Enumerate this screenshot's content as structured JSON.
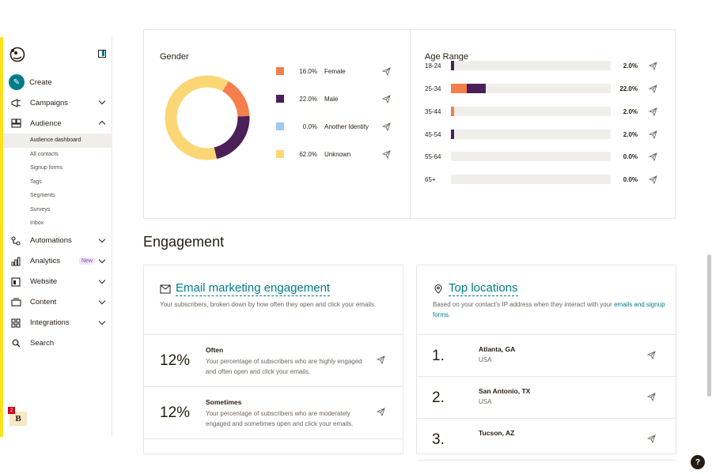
{
  "sidebar": {
    "items": [
      {
        "label": "Create",
        "icon": "pencil-icon"
      },
      {
        "label": "Campaigns",
        "icon": "megaphone-icon"
      },
      {
        "label": "Audience",
        "icon": "audience-icon"
      },
      {
        "label": "Automations",
        "icon": "automations-icon"
      },
      {
        "label": "Analytics",
        "icon": "analytics-icon",
        "badge": "New"
      },
      {
        "label": "Website",
        "icon": "website-icon"
      },
      {
        "label": "Content",
        "icon": "content-icon"
      },
      {
        "label": "Integrations",
        "icon": "integrations-icon"
      },
      {
        "label": "Search",
        "icon": "search-icon"
      }
    ],
    "audience_sub": [
      "Audience dashboard",
      "All contacts",
      "Signup forms",
      "Tags",
      "Segments",
      "Surveys",
      "Inbox"
    ],
    "avatar_letter": "B",
    "notification_count": "2"
  },
  "gender": {
    "title": "Gender",
    "rows": [
      {
        "pct": "16.0%",
        "label": "Female",
        "color": "#f47e4c",
        "value": 16.0
      },
      {
        "pct": "22.0%",
        "label": "Male",
        "color": "#4b1f57",
        "value": 22.0
      },
      {
        "pct": "0.0%",
        "label": "Another Identity",
        "color": "#9ecbed",
        "value": 0.0
      },
      {
        "pct": "62.0%",
        "label": "Unknown",
        "color": "#fbd675",
        "value": 62.0
      }
    ]
  },
  "age": {
    "title": "Age Range",
    "rows": [
      {
        "range": "18-24",
        "pct": "2.0%",
        "female": 0,
        "male": 2.0
      },
      {
        "range": "25-34",
        "pct": "22.0%",
        "female": 10.0,
        "male": 12.0
      },
      {
        "range": "35-44",
        "pct": "2.0%",
        "female": 2.0,
        "male": 0
      },
      {
        "range": "45-54",
        "pct": "2.0%",
        "female": 0,
        "male": 2.0
      },
      {
        "range": "55-64",
        "pct": "0.0%",
        "female": 0,
        "male": 0
      },
      {
        "range": "65+",
        "pct": "0.0%",
        "female": 0,
        "male": 0
      }
    ]
  },
  "engagement": {
    "heading": "Engagement",
    "email_card": {
      "title": "Email marketing engagement",
      "desc": "Your subscribers, broken down by how often they open and click your emails.",
      "rows": [
        {
          "pct": "12%",
          "name": "Often",
          "desc": "Your percentage of subscribers who are highly engaged and often open and click your emails."
        },
        {
          "pct": "12%",
          "name": "Sometimes",
          "desc": "Your percentage of subscribers who are moderately engaged and sometimes open and click your emails."
        }
      ]
    },
    "locations_card": {
      "title": "Top locations",
      "desc": "Based on your contact's IP address when they interact with your",
      "desc_link": "emails and signup forms",
      "desc_end": ".",
      "rows": [
        {
          "num": "1.",
          "city": "Atlanta, GA",
          "country": "USA"
        },
        {
          "num": "2.",
          "city": "San Antonio, TX",
          "country": "USA"
        },
        {
          "num": "3.",
          "city": "Tucson, AZ",
          "country": ""
        }
      ]
    }
  },
  "help_label": "?"
}
